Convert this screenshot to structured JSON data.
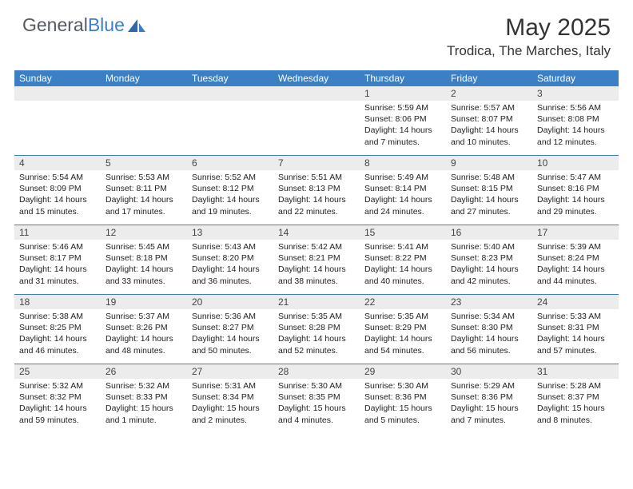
{
  "brand": {
    "text1": "General",
    "text2": "Blue"
  },
  "title": "May 2025",
  "location": "Trodica, The Marches, Italy",
  "colors": {
    "header_bg": "#3b7fc4",
    "header_text": "#ffffff",
    "num_bar_bg": "#ececec",
    "row_border": "#3b7fc4",
    "body_text": "#222222",
    "brand_gray": "#555a60",
    "brand_blue": "#3b7fc4"
  },
  "day_names": [
    "Sunday",
    "Monday",
    "Tuesday",
    "Wednesday",
    "Thursday",
    "Friday",
    "Saturday"
  ],
  "weeks": [
    [
      {
        "n": "",
        "sr": "",
        "ss": "",
        "dl": ""
      },
      {
        "n": "",
        "sr": "",
        "ss": "",
        "dl": ""
      },
      {
        "n": "",
        "sr": "",
        "ss": "",
        "dl": ""
      },
      {
        "n": "",
        "sr": "",
        "ss": "",
        "dl": ""
      },
      {
        "n": "1",
        "sr": "Sunrise: 5:59 AM",
        "ss": "Sunset: 8:06 PM",
        "dl": "Daylight: 14 hours and 7 minutes."
      },
      {
        "n": "2",
        "sr": "Sunrise: 5:57 AM",
        "ss": "Sunset: 8:07 PM",
        "dl": "Daylight: 14 hours and 10 minutes."
      },
      {
        "n": "3",
        "sr": "Sunrise: 5:56 AM",
        "ss": "Sunset: 8:08 PM",
        "dl": "Daylight: 14 hours and 12 minutes."
      }
    ],
    [
      {
        "n": "4",
        "sr": "Sunrise: 5:54 AM",
        "ss": "Sunset: 8:09 PM",
        "dl": "Daylight: 14 hours and 15 minutes."
      },
      {
        "n": "5",
        "sr": "Sunrise: 5:53 AM",
        "ss": "Sunset: 8:11 PM",
        "dl": "Daylight: 14 hours and 17 minutes."
      },
      {
        "n": "6",
        "sr": "Sunrise: 5:52 AM",
        "ss": "Sunset: 8:12 PM",
        "dl": "Daylight: 14 hours and 19 minutes."
      },
      {
        "n": "7",
        "sr": "Sunrise: 5:51 AM",
        "ss": "Sunset: 8:13 PM",
        "dl": "Daylight: 14 hours and 22 minutes."
      },
      {
        "n": "8",
        "sr": "Sunrise: 5:49 AM",
        "ss": "Sunset: 8:14 PM",
        "dl": "Daylight: 14 hours and 24 minutes."
      },
      {
        "n": "9",
        "sr": "Sunrise: 5:48 AM",
        "ss": "Sunset: 8:15 PM",
        "dl": "Daylight: 14 hours and 27 minutes."
      },
      {
        "n": "10",
        "sr": "Sunrise: 5:47 AM",
        "ss": "Sunset: 8:16 PM",
        "dl": "Daylight: 14 hours and 29 minutes."
      }
    ],
    [
      {
        "n": "11",
        "sr": "Sunrise: 5:46 AM",
        "ss": "Sunset: 8:17 PM",
        "dl": "Daylight: 14 hours and 31 minutes."
      },
      {
        "n": "12",
        "sr": "Sunrise: 5:45 AM",
        "ss": "Sunset: 8:18 PM",
        "dl": "Daylight: 14 hours and 33 minutes."
      },
      {
        "n": "13",
        "sr": "Sunrise: 5:43 AM",
        "ss": "Sunset: 8:20 PM",
        "dl": "Daylight: 14 hours and 36 minutes."
      },
      {
        "n": "14",
        "sr": "Sunrise: 5:42 AM",
        "ss": "Sunset: 8:21 PM",
        "dl": "Daylight: 14 hours and 38 minutes."
      },
      {
        "n": "15",
        "sr": "Sunrise: 5:41 AM",
        "ss": "Sunset: 8:22 PM",
        "dl": "Daylight: 14 hours and 40 minutes."
      },
      {
        "n": "16",
        "sr": "Sunrise: 5:40 AM",
        "ss": "Sunset: 8:23 PM",
        "dl": "Daylight: 14 hours and 42 minutes."
      },
      {
        "n": "17",
        "sr": "Sunrise: 5:39 AM",
        "ss": "Sunset: 8:24 PM",
        "dl": "Daylight: 14 hours and 44 minutes."
      }
    ],
    [
      {
        "n": "18",
        "sr": "Sunrise: 5:38 AM",
        "ss": "Sunset: 8:25 PM",
        "dl": "Daylight: 14 hours and 46 minutes."
      },
      {
        "n": "19",
        "sr": "Sunrise: 5:37 AM",
        "ss": "Sunset: 8:26 PM",
        "dl": "Daylight: 14 hours and 48 minutes."
      },
      {
        "n": "20",
        "sr": "Sunrise: 5:36 AM",
        "ss": "Sunset: 8:27 PM",
        "dl": "Daylight: 14 hours and 50 minutes."
      },
      {
        "n": "21",
        "sr": "Sunrise: 5:35 AM",
        "ss": "Sunset: 8:28 PM",
        "dl": "Daylight: 14 hours and 52 minutes."
      },
      {
        "n": "22",
        "sr": "Sunrise: 5:35 AM",
        "ss": "Sunset: 8:29 PM",
        "dl": "Daylight: 14 hours and 54 minutes."
      },
      {
        "n": "23",
        "sr": "Sunrise: 5:34 AM",
        "ss": "Sunset: 8:30 PM",
        "dl": "Daylight: 14 hours and 56 minutes."
      },
      {
        "n": "24",
        "sr": "Sunrise: 5:33 AM",
        "ss": "Sunset: 8:31 PM",
        "dl": "Daylight: 14 hours and 57 minutes."
      }
    ],
    [
      {
        "n": "25",
        "sr": "Sunrise: 5:32 AM",
        "ss": "Sunset: 8:32 PM",
        "dl": "Daylight: 14 hours and 59 minutes."
      },
      {
        "n": "26",
        "sr": "Sunrise: 5:32 AM",
        "ss": "Sunset: 8:33 PM",
        "dl": "Daylight: 15 hours and 1 minute."
      },
      {
        "n": "27",
        "sr": "Sunrise: 5:31 AM",
        "ss": "Sunset: 8:34 PM",
        "dl": "Daylight: 15 hours and 2 minutes."
      },
      {
        "n": "28",
        "sr": "Sunrise: 5:30 AM",
        "ss": "Sunset: 8:35 PM",
        "dl": "Daylight: 15 hours and 4 minutes."
      },
      {
        "n": "29",
        "sr": "Sunrise: 5:30 AM",
        "ss": "Sunset: 8:36 PM",
        "dl": "Daylight: 15 hours and 5 minutes."
      },
      {
        "n": "30",
        "sr": "Sunrise: 5:29 AM",
        "ss": "Sunset: 8:36 PM",
        "dl": "Daylight: 15 hours and 7 minutes."
      },
      {
        "n": "31",
        "sr": "Sunrise: 5:28 AM",
        "ss": "Sunset: 8:37 PM",
        "dl": "Daylight: 15 hours and 8 minutes."
      }
    ]
  ]
}
